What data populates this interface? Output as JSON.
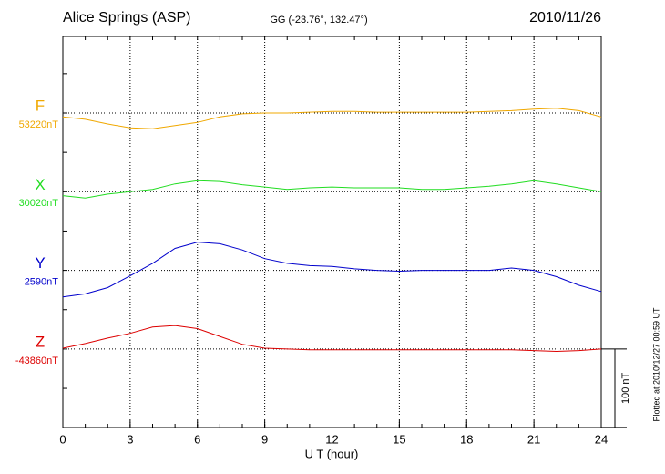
{
  "chart_data": {
    "type": "line",
    "title": "Alice Springs (ASP)",
    "subtitle": "GG (-23.76°, 132.47°)",
    "date": "2010/11/26",
    "xlabel": "U T (hour)",
    "note": "Plotted at 2010/12/27 00:59 UT",
    "scale_bar": {
      "value": 100,
      "label": "100 nT"
    },
    "xlim": [
      0,
      24
    ],
    "xticks": [
      0,
      3,
      6,
      9,
      12,
      15,
      18,
      21,
      24
    ],
    "grid": true,
    "x": [
      0,
      1,
      2,
      3,
      4,
      5,
      6,
      7,
      8,
      9,
      10,
      11,
      12,
      13,
      14,
      15,
      16,
      17,
      18,
      19,
      20,
      21,
      22,
      23,
      24
    ],
    "series": [
      {
        "name": "F",
        "color": "#f0a800",
        "baseline": {
          "value": 53220,
          "label": "53220nT"
        },
        "values": [
          53215,
          53212,
          53206,
          53201,
          53200,
          53204,
          53208,
          53215,
          53219,
          53220,
          53220,
          53221,
          53222,
          53222,
          53221,
          53221,
          53221,
          53221,
          53221,
          53222,
          53223,
          53225,
          53226,
          53223,
          53215
        ]
      },
      {
        "name": "X",
        "color": "#22dd22",
        "baseline": {
          "value": 30020,
          "label": "30020nT"
        },
        "values": [
          30015,
          30012,
          30017,
          30020,
          30023,
          30030,
          30034,
          30033,
          30029,
          30026,
          30023,
          30025,
          30026,
          30025,
          30025,
          30025,
          30023,
          30023,
          30025,
          30027,
          30030,
          30034,
          30030,
          30025,
          30020
        ]
      },
      {
        "name": "Y",
        "color": "#0000cc",
        "baseline": {
          "value": 2590,
          "label": "2590nT"
        },
        "values": [
          2556,
          2560,
          2568,
          2583,
          2599,
          2618,
          2626,
          2624,
          2616,
          2605,
          2599,
          2596,
          2595,
          2592,
          2590,
          2589,
          2590,
          2590,
          2590,
          2590,
          2593,
          2590,
          2582,
          2571,
          2563
        ]
      },
      {
        "name": "Z",
        "color": "#dd0000",
        "baseline": {
          "value": -43860,
          "label": "-43860nT"
        },
        "values": [
          -43859,
          -43853,
          -43846,
          -43840,
          -43832,
          -43830,
          -43834,
          -43844,
          -43854,
          -43859,
          -43860,
          -43861,
          -43861,
          -43861,
          -43861,
          -43861,
          -43861,
          -43861,
          -43861,
          -43861,
          -43861,
          -43862,
          -43863,
          -43862,
          -43860
        ]
      }
    ]
  }
}
